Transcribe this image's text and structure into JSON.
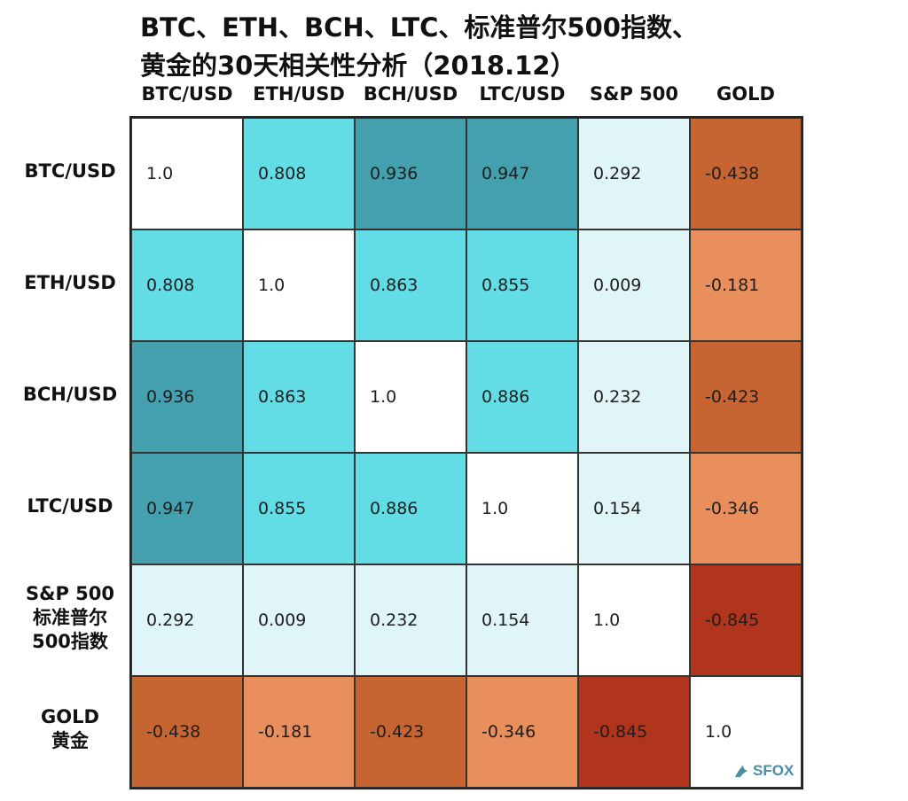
{
  "chart_data": {
    "type": "heatmap",
    "title_line1": "BTC、ETH、BCH、LTC、标准普尔500指数、",
    "title_line2": "黄金的30天相关性分析（2018.12）",
    "columns": [
      "BTC/USD",
      "ETH/USD",
      "BCH/USD",
      "LTC/USD",
      "S&P 500",
      "GOLD"
    ],
    "rows": [
      {
        "label_lines": [
          "BTC/USD"
        ]
      },
      {
        "label_lines": [
          "ETH/USD"
        ]
      },
      {
        "label_lines": [
          "BCH/USD"
        ]
      },
      {
        "label_lines": [
          "LTC/USD"
        ]
      },
      {
        "label_lines": [
          "S&P 500",
          "标准普尔",
          "500指数"
        ]
      },
      {
        "label_lines": [
          "GOLD",
          "黄金"
        ]
      }
    ],
    "values": [
      [
        "1.0",
        "0.808",
        "0.936",
        "0.947",
        "0.292",
        "-0.438"
      ],
      [
        "0.808",
        "1.0",
        "0.863",
        "0.855",
        "0.009",
        "-0.181"
      ],
      [
        "0.936",
        "0.863",
        "1.0",
        "0.886",
        "0.232",
        "-0.423"
      ],
      [
        "0.947",
        "0.855",
        "0.886",
        "1.0",
        "0.154",
        "-0.346"
      ],
      [
        "0.292",
        "0.009",
        "0.232",
        "0.154",
        "1.0",
        "-0.845"
      ],
      [
        "-0.438",
        "-0.181",
        "-0.423",
        "-0.346",
        "-0.845",
        "1.0"
      ]
    ],
    "colors": {
      "diagonal": "#ffffff",
      "high_positive": "#44a0ae",
      "positive": "#62dde5",
      "low_positive": "#dff5f8",
      "weak_negative": "#e98f5e",
      "negative": "#c66432",
      "strong_negative": "#b0351c"
    }
  },
  "watermark": {
    "text": "SFOX"
  }
}
